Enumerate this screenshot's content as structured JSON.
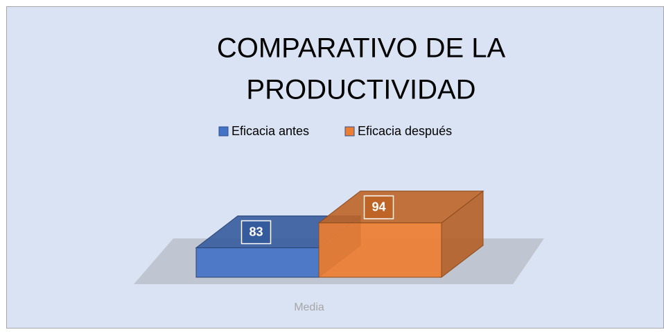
{
  "chart_data": {
    "type": "bar3d",
    "title": [
      "COMPARATIVO DE LA",
      "PRODUCTIVIDAD"
    ],
    "categories": [
      "Media"
    ],
    "series": [
      {
        "name": "Eficacia antes",
        "color": "#4472c4",
        "values": [
          83
        ]
      },
      {
        "name": "Eficacia después",
        "color": "#ed7d31",
        "values": [
          94
        ]
      }
    ],
    "ylim": [
      70,
      100
    ],
    "legend": "top"
  }
}
